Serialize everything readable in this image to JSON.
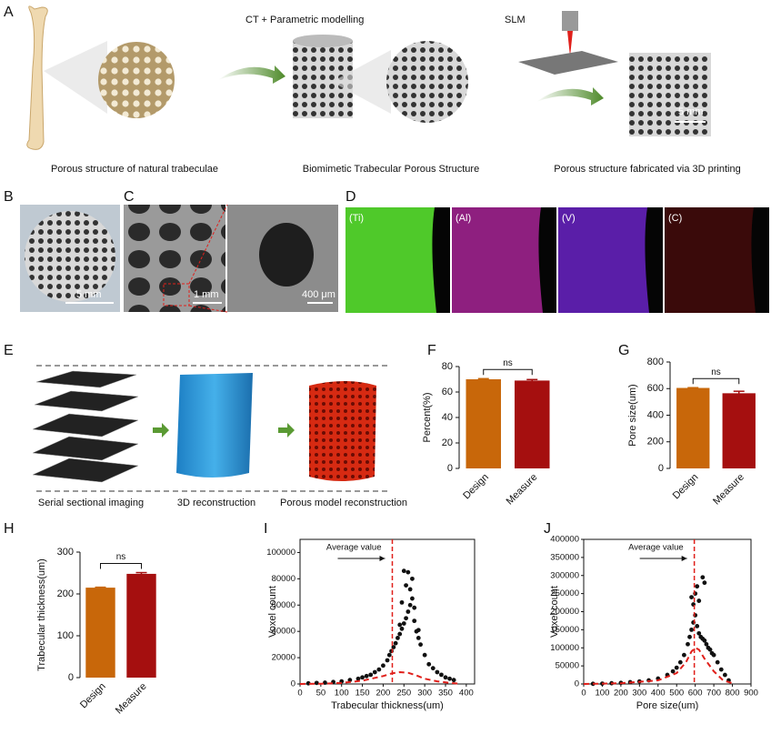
{
  "figure": {
    "panel_labels": [
      "A",
      "B",
      "C",
      "D",
      "E",
      "F",
      "G",
      "H",
      "I",
      "J"
    ],
    "a_steps": [
      "CT + Parametric modelling",
      "SLM"
    ],
    "a_captions": [
      "Porous structure of natural trabeculae",
      "Biomimetic Trabecular Porous Structure",
      "Porous structure fabricated via 3D printing"
    ],
    "a_scale": "5 mm",
    "b_scale": "5 mm",
    "c_scales": [
      "1 mm",
      "400 μm"
    ],
    "d_elements": [
      "(Ti)",
      "(Al)",
      "(V)",
      "(C)"
    ],
    "e_captions": [
      "Serial sectional imaging",
      "3D reconstruction",
      "Porous model reconstruction"
    ]
  },
  "chart_data": [
    {
      "type": "bar",
      "categories": [
        "Design",
        "Measure"
      ],
      "values": [
        70,
        69
      ],
      "errors": [
        0.5,
        0.8
      ],
      "colors": [
        "#c8670a",
        "#a50f0f"
      ],
      "ylabel": "Percent(%)",
      "ylim": [
        0,
        80
      ],
      "yticks": [
        0,
        20,
        40,
        60,
        80
      ],
      "annotation": "ns"
    },
    {
      "type": "bar",
      "categories": [
        "Design",
        "Measure"
      ],
      "values": [
        605,
        565
      ],
      "errors": [
        2,
        15
      ],
      "colors": [
        "#c8670a",
        "#a50f0f"
      ],
      "ylabel": "Pore size(um)",
      "ylim": [
        0,
        800
      ],
      "yticks": [
        0,
        200,
        400,
        600,
        800
      ],
      "annotation": "ns"
    },
    {
      "type": "bar",
      "categories": [
        "Design",
        "Measure"
      ],
      "values": [
        215,
        248
      ],
      "errors": [
        1,
        3
      ],
      "colors": [
        "#c8670a",
        "#a50f0f"
      ],
      "ylabel": "Trabecular thickness(um)",
      "ylim": [
        0,
        300
      ],
      "yticks": [
        0,
        100,
        200,
        300
      ],
      "annotation": "ns"
    },
    {
      "type": "scatter",
      "color": "#111111",
      "x": [
        20,
        40,
        60,
        80,
        100,
        120,
        140,
        150,
        160,
        170,
        180,
        190,
        200,
        210,
        215,
        220,
        225,
        230,
        235,
        240,
        245,
        250,
        255,
        260,
        265,
        270,
        275,
        280,
        285,
        290,
        300,
        310,
        320,
        330,
        340,
        350,
        360,
        370,
        250,
        260,
        270,
        255,
        265,
        245,
        275,
        240,
        285
      ],
      "values": [
        500,
        800,
        1000,
        1500,
        2000,
        3000,
        4000,
        5000,
        6000,
        7000,
        9000,
        11000,
        14000,
        18000,
        22000,
        25000,
        28000,
        31000,
        35000,
        38000,
        42000,
        46000,
        50000,
        55000,
        60000,
        65000,
        48000,
        40000,
        35000,
        30000,
        22000,
        15000,
        12000,
        9000,
        7000,
        5000,
        4000,
        3000,
        86000,
        85000,
        80000,
        75000,
        72000,
        62000,
        58000,
        45000,
        41000
      ],
      "fit": {
        "color": "#e0201b",
        "x": [
          0,
          50,
          100,
          150,
          200,
          220,
          240,
          260,
          280,
          300,
          330,
          360,
          380
        ],
        "values": [
          0,
          200,
          800,
          2500,
          6000,
          8000,
          9000,
          8500,
          6500,
          4000,
          2000,
          800,
          300
        ]
      },
      "average": {
        "label": "Average value",
        "x": 222
      },
      "xlabel": "Trabecular thickness(um)",
      "ylabel": "Voxel count",
      "xlim": [
        0,
        420
      ],
      "xticks": [
        0,
        50,
        100,
        150,
        200,
        250,
        300,
        350,
        400
      ],
      "ylim": [
        0,
        110000
      ],
      "yticks": [
        0,
        20000,
        40000,
        60000,
        80000,
        100000
      ]
    },
    {
      "type": "scatter",
      "color": "#111111",
      "x": [
        50,
        100,
        150,
        200,
        250,
        300,
        350,
        400,
        450,
        480,
        500,
        520,
        540,
        560,
        570,
        580,
        590,
        600,
        610,
        620,
        630,
        640,
        650,
        660,
        670,
        680,
        690,
        700,
        720,
        740,
        760,
        780,
        600,
        610,
        620,
        640,
        650,
        590,
        580
      ],
      "values": [
        500,
        1000,
        2000,
        3000,
        5000,
        7000,
        10000,
        15000,
        25000,
        35000,
        45000,
        60000,
        80000,
        110000,
        130000,
        150000,
        170000,
        190000,
        160000,
        140000,
        130000,
        125000,
        120000,
        110000,
        100000,
        95000,
        85000,
        80000,
        60000,
        40000,
        25000,
        10000,
        250000,
        270000,
        230000,
        295000,
        280000,
        220000,
        240000
      ],
      "fit": {
        "color": "#e0201b",
        "x": [
          0,
          200,
          400,
          500,
          550,
          580,
          600,
          620,
          650,
          700,
          750,
          800
        ],
        "values": [
          0,
          2000,
          10000,
          30000,
          60000,
          90000,
          100000,
          95000,
          70000,
          35000,
          10000,
          2000
        ]
      },
      "average": {
        "label": "Average value",
        "x": 595
      },
      "xlabel": "Pore size(um)",
      "ylabel": "Voxel count",
      "xlim": [
        0,
        900
      ],
      "xticks": [
        0,
        100,
        200,
        300,
        400,
        500,
        600,
        700,
        800,
        900
      ],
      "ylim": [
        0,
        400000
      ],
      "yticks": [
        0,
        50000,
        100000,
        150000,
        200000,
        250000,
        300000,
        350000,
        400000
      ]
    }
  ]
}
